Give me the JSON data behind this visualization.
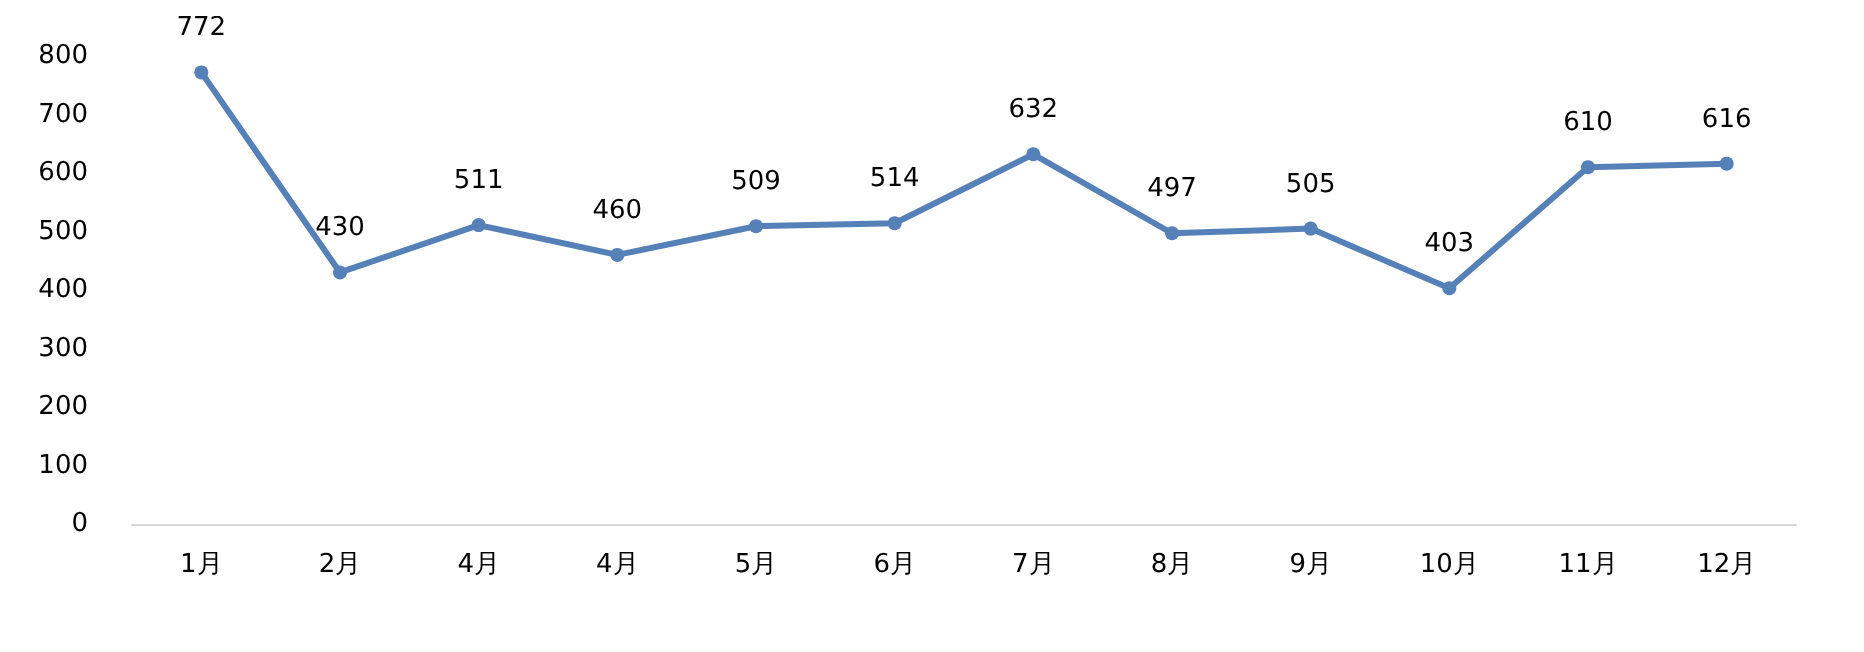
{
  "chart_data": {
    "type": "line",
    "categories": [
      "1月",
      "2月",
      "4月",
      "4月",
      "5月",
      "6月",
      "7月",
      "8月",
      "9月",
      "10月",
      "11月",
      "12月"
    ],
    "series": [
      {
        "color": "#5580b8",
        "values": [
          772,
          430,
          511,
          460,
          509,
          514,
          632,
          497,
          505,
          403,
          610,
          616
        ]
      }
    ],
    "ylim": [
      0,
      800
    ],
    "yticks": [
      0,
      100,
      200,
      300,
      400,
      500,
      600,
      700,
      800
    ],
    "grid": false,
    "marker": "circle",
    "line_style": "solid",
    "data_labels": true
  }
}
